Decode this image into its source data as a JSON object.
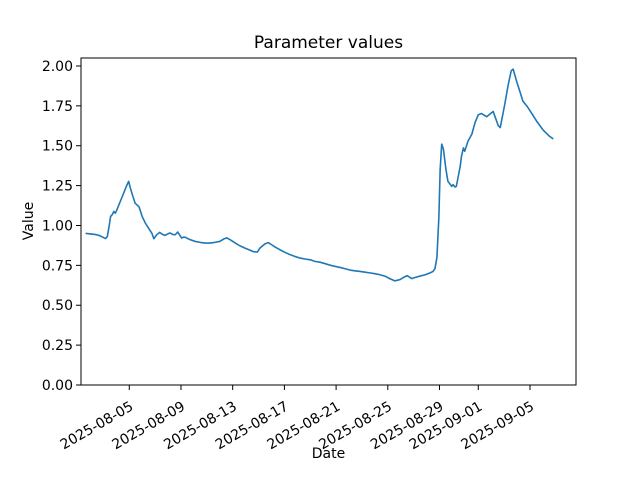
{
  "chart_data": {
    "type": "line",
    "title": "Parameter values",
    "xlabel": "Date",
    "ylabel": "Value",
    "series_name": "Parameter value",
    "line_color": "#1f77b4",
    "line_width": 1.6,
    "axis_color": "#000000",
    "background": "#ffffff",
    "grid": false,
    "legend": "none",
    "x_unit": "days since 2025-08-01 00:00",
    "xlim": [
      0.265,
      38.56
    ],
    "ylim": [
      0.0,
      2.05
    ],
    "x_ticks": [
      {
        "pos": 4,
        "label": "2025-08-05"
      },
      {
        "pos": 8,
        "label": "2025-08-09"
      },
      {
        "pos": 12,
        "label": "2025-08-13"
      },
      {
        "pos": 16,
        "label": "2025-08-17"
      },
      {
        "pos": 20,
        "label": "2025-08-21"
      },
      {
        "pos": 24,
        "label": "2025-08-25"
      },
      {
        "pos": 28,
        "label": "2025-08-29"
      },
      {
        "pos": 31,
        "label": "2025-09-01"
      },
      {
        "pos": 35,
        "label": "2025-09-05"
      }
    ],
    "y_ticks": [
      {
        "pos": 0.0,
        "label": "0.00"
      },
      {
        "pos": 0.25,
        "label": "0.25"
      },
      {
        "pos": 0.5,
        "label": "0.50"
      },
      {
        "pos": 0.75,
        "label": "0.75"
      },
      {
        "pos": 1.0,
        "label": "1.00"
      },
      {
        "pos": 1.25,
        "label": "1.25"
      },
      {
        "pos": 1.5,
        "label": "1.50"
      },
      {
        "pos": 1.75,
        "label": "1.75"
      },
      {
        "pos": 2.0,
        "label": "2.00"
      }
    ],
    "points": [
      [
        0.67,
        0.95
      ],
      [
        1.0,
        0.947
      ],
      [
        1.35,
        0.944
      ],
      [
        1.65,
        0.938
      ],
      [
        1.9,
        0.929
      ],
      [
        2.15,
        0.918
      ],
      [
        2.3,
        0.93
      ],
      [
        2.45,
        1.0
      ],
      [
        2.55,
        1.056
      ],
      [
        2.7,
        1.07
      ],
      [
        2.8,
        1.088
      ],
      [
        2.92,
        1.077
      ],
      [
        3.05,
        1.1
      ],
      [
        3.2,
        1.13
      ],
      [
        3.4,
        1.17
      ],
      [
        3.6,
        1.21
      ],
      [
        3.8,
        1.25
      ],
      [
        3.95,
        1.277
      ],
      [
        4.1,
        1.23
      ],
      [
        4.25,
        1.19
      ],
      [
        4.45,
        1.14
      ],
      [
        4.75,
        1.118
      ],
      [
        5.0,
        1.056
      ],
      [
        5.25,
        1.014
      ],
      [
        5.5,
        0.982
      ],
      [
        5.75,
        0.951
      ],
      [
        5.9,
        0.917
      ],
      [
        6.1,
        0.94
      ],
      [
        6.35,
        0.957
      ],
      [
        6.55,
        0.945
      ],
      [
        6.75,
        0.938
      ],
      [
        7.0,
        0.948
      ],
      [
        7.15,
        0.953
      ],
      [
        7.35,
        0.944
      ],
      [
        7.55,
        0.942
      ],
      [
        7.75,
        0.959
      ],
      [
        7.9,
        0.94
      ],
      [
        8.05,
        0.921
      ],
      [
        8.2,
        0.927
      ],
      [
        8.35,
        0.926
      ],
      [
        8.5,
        0.919
      ],
      [
        8.7,
        0.911
      ],
      [
        9.1,
        0.9
      ],
      [
        9.5,
        0.894
      ],
      [
        9.85,
        0.89
      ],
      [
        10.25,
        0.89
      ],
      [
        10.6,
        0.894
      ],
      [
        11.0,
        0.9
      ],
      [
        11.3,
        0.915
      ],
      [
        11.55,
        0.922
      ],
      [
        11.8,
        0.911
      ],
      [
        12.2,
        0.89
      ],
      [
        12.55,
        0.873
      ],
      [
        12.95,
        0.858
      ],
      [
        13.35,
        0.845
      ],
      [
        13.6,
        0.836
      ],
      [
        13.9,
        0.833
      ],
      [
        14.1,
        0.858
      ],
      [
        14.5,
        0.885
      ],
      [
        14.75,
        0.893
      ],
      [
        15.0,
        0.88
      ],
      [
        15.3,
        0.864
      ],
      [
        15.65,
        0.848
      ],
      [
        16.05,
        0.831
      ],
      [
        16.45,
        0.817
      ],
      [
        16.8,
        0.806
      ],
      [
        17.2,
        0.796
      ],
      [
        17.6,
        0.79
      ],
      [
        18.0,
        0.785
      ],
      [
        18.35,
        0.775
      ],
      [
        18.75,
        0.77
      ],
      [
        19.1,
        0.762
      ],
      [
        19.5,
        0.752
      ],
      [
        19.9,
        0.744
      ],
      [
        20.3,
        0.737
      ],
      [
        20.7,
        0.729
      ],
      [
        21.1,
        0.72
      ],
      [
        21.45,
        0.716
      ],
      [
        21.85,
        0.712
      ],
      [
        22.25,
        0.707
      ],
      [
        22.6,
        0.703
      ],
      [
        23.0,
        0.698
      ],
      [
        23.4,
        0.691
      ],
      [
        23.8,
        0.682
      ],
      [
        24.15,
        0.667
      ],
      [
        24.55,
        0.653
      ],
      [
        24.95,
        0.661
      ],
      [
        25.3,
        0.678
      ],
      [
        25.5,
        0.685
      ],
      [
        25.85,
        0.667
      ],
      [
        26.1,
        0.674
      ],
      [
        26.5,
        0.683
      ],
      [
        26.9,
        0.691
      ],
      [
        27.25,
        0.702
      ],
      [
        27.5,
        0.712
      ],
      [
        27.65,
        0.73
      ],
      [
        27.8,
        0.8
      ],
      [
        27.95,
        1.05
      ],
      [
        28.05,
        1.35
      ],
      [
        28.17,
        1.51
      ],
      [
        28.3,
        1.48
      ],
      [
        28.5,
        1.35
      ],
      [
        28.65,
        1.277
      ],
      [
        28.95,
        1.245
      ],
      [
        29.05,
        1.256
      ],
      [
        29.2,
        1.241
      ],
      [
        29.3,
        1.245
      ],
      [
        29.6,
        1.37
      ],
      [
        29.7,
        1.434
      ],
      [
        29.85,
        1.486
      ],
      [
        29.95,
        1.465
      ],
      [
        30.2,
        1.528
      ],
      [
        30.5,
        1.572
      ],
      [
        30.75,
        1.645
      ],
      [
        31.0,
        1.694
      ],
      [
        31.25,
        1.702
      ],
      [
        31.65,
        1.682
      ],
      [
        32.05,
        1.708
      ],
      [
        32.15,
        1.715
      ],
      [
        32.55,
        1.625
      ],
      [
        32.7,
        1.614
      ],
      [
        33.05,
        1.76
      ],
      [
        33.3,
        1.876
      ],
      [
        33.55,
        1.97
      ],
      [
        33.7,
        1.98
      ],
      [
        33.95,
        1.908
      ],
      [
        34.2,
        1.845
      ],
      [
        34.45,
        1.78
      ],
      [
        34.75,
        1.75
      ],
      [
        35.0,
        1.72
      ],
      [
        35.5,
        1.656
      ],
      [
        36.0,
        1.6
      ],
      [
        36.5,
        1.56
      ],
      [
        36.76,
        1.545
      ]
    ]
  }
}
